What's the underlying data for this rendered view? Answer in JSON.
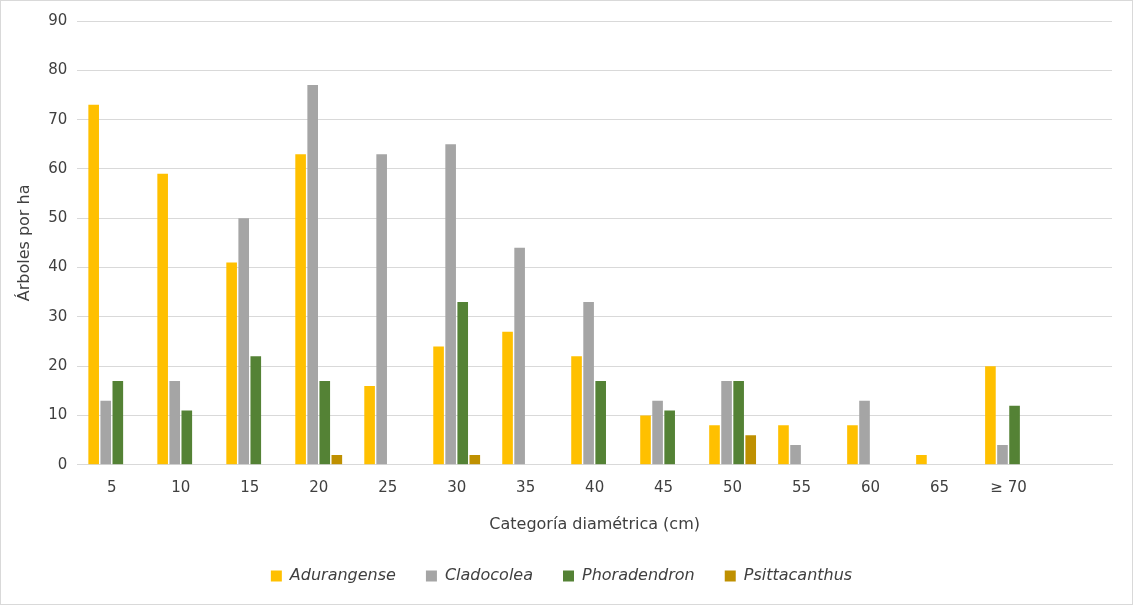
{
  "chart_data": {
    "type": "bar",
    "xlabel": "Categoría diamétrica (cm)",
    "ylabel": "Árboles por ha",
    "categories": [
      "5",
      "10",
      "15",
      "20",
      "25",
      "30",
      "35",
      "40",
      "45",
      "50",
      "55",
      "60",
      "65",
      "≥ 70",
      null
    ],
    "series": [
      {
        "name": "Adurangense",
        "color": "#ffc000",
        "values": [
          73,
          59,
          41,
          63,
          16,
          24,
          27,
          22,
          10,
          8,
          8,
          8,
          2,
          20,
          null
        ]
      },
      {
        "name": "Cladocolea",
        "color": "#a5a5a5",
        "values": [
          13,
          17,
          50,
          77,
          63,
          65,
          44,
          33,
          13,
          17,
          4,
          13,
          null,
          4,
          null
        ]
      },
      {
        "name": "Phoradendron",
        "color": "#548235",
        "values": [
          17,
          11,
          22,
          17,
          null,
          33,
          null,
          17,
          11,
          17,
          null,
          null,
          null,
          12,
          null
        ]
      },
      {
        "name": "Psittacanthus",
        "color": "#bf9000",
        "values": [
          null,
          null,
          null,
          2,
          null,
          2,
          null,
          null,
          null,
          6,
          null,
          null,
          null,
          null,
          null
        ]
      }
    ],
    "ylim": [
      0,
      90
    ],
    "yticks": [
      0,
      10,
      20,
      30,
      40,
      50,
      60,
      70,
      80,
      90
    ],
    "grid": "y",
    "legend": "bottom"
  }
}
